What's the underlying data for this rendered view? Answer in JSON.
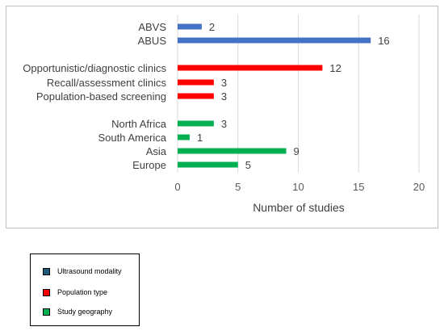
{
  "chart_data": {
    "type": "bar",
    "orientation": "horizontal",
    "xlabel": "Number of studies",
    "ylabel": "",
    "xlim": [
      0,
      20
    ],
    "xticks": [
      0,
      5,
      10,
      15,
      20
    ],
    "grid": true,
    "data_labels": true,
    "groups": [
      {
        "name": "Ultrasound modality",
        "color": "#4472c4",
        "categories": [
          "ABVS",
          "ABUS"
        ],
        "values": [
          2,
          16
        ]
      },
      {
        "name": "Population type",
        "color": "#ff0000",
        "categories": [
          "Opportunistic/diagnostic clinics",
          "Recall/assessment clinics",
          "Population-based screening"
        ],
        "values": [
          12,
          3,
          3
        ]
      },
      {
        "name": "Study geography",
        "color": "#00b050",
        "categories": [
          "North Africa",
          "South America",
          "Asia",
          "Europe"
        ],
        "values": [
          3,
          1,
          9,
          5
        ]
      }
    ]
  },
  "legend": {
    "placement": "bottom-left",
    "items": [
      {
        "label": "Ultrasound modality",
        "color": "#1f5a7a"
      },
      {
        "label": "Population type",
        "color": "#ff0000"
      },
      {
        "label": "Study geography",
        "color": "#00b050"
      }
    ]
  }
}
